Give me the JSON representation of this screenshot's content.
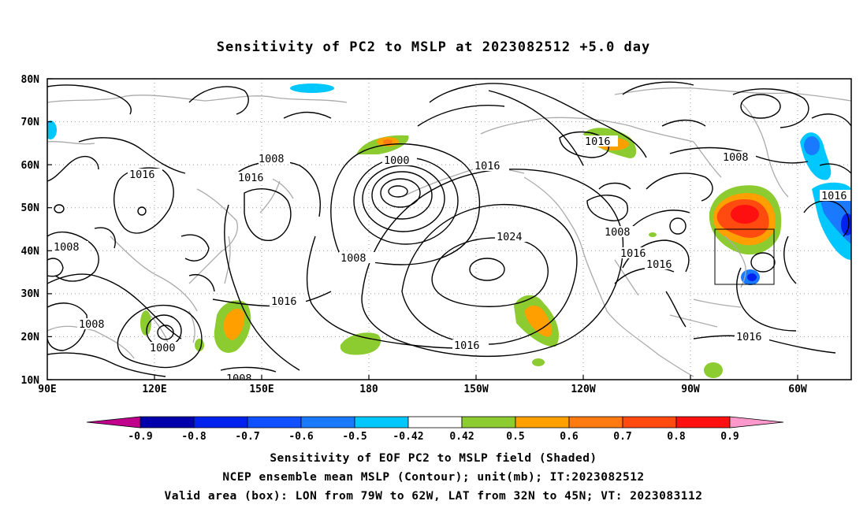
{
  "title": "Sensitivity of PC2 to MSLP at 2023082512 +5.0 day",
  "map": {
    "lat_labels": [
      "80N",
      "70N",
      "60N",
      "50N",
      "40N",
      "30N",
      "20N",
      "10N"
    ],
    "lon_labels": [
      "90E",
      "120E",
      "150E",
      "180",
      "150W",
      "120W",
      "90W",
      "60W"
    ],
    "contour_labels": [
      "1008",
      "1000",
      "1016",
      "1016",
      "1016",
      "1008",
      "1008",
      "1024",
      "1008",
      "1016",
      "1016",
      "1008",
      "1016",
      "1016",
      "1000",
      "1016",
      "1008",
      "1016",
      "1008",
      "1016"
    ]
  },
  "colorbar": {
    "labels": [
      "-0.9",
      "-0.8",
      "-0.7",
      "-0.6",
      "-0.5",
      "-0.42",
      "0.42",
      "0.5",
      "0.6",
      "0.7",
      "0.8",
      "0.9"
    ],
    "colors": [
      "#c0008a",
      "#0000aa",
      "#0022ee",
      "#1050ff",
      "#1a7aff",
      "#00c8ff",
      "#ffffff",
      "#8ccc30",
      "#ffa000",
      "#ff7a10",
      "#ff4a10",
      "#ff1010",
      "#ff1010",
      "#ff99cc"
    ]
  },
  "captions": {
    "line1": "Sensitivity of EOF PC2 to MSLP field (Shaded)",
    "line2": "NCEP ensemble mean MSLP (Contour); unit(mb); IT:2023082512",
    "line3": "Valid area (box): LON from 79W to 62W, LAT from 32N to 45N; VT: 2023083112"
  }
}
